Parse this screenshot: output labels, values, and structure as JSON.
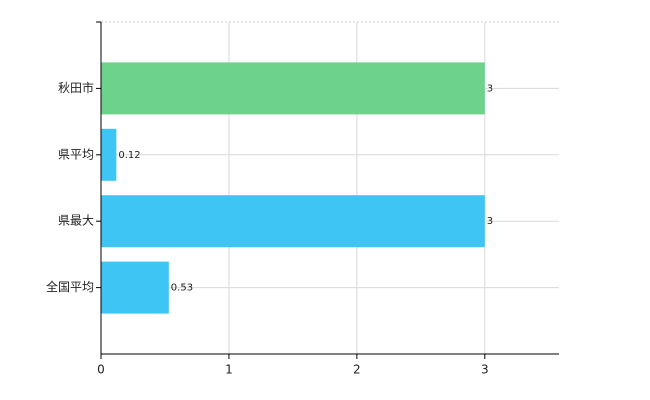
{
  "chart_data": {
    "type": "barh",
    "categories": [
      "秋田市",
      "県平均",
      "県最大",
      "全国平均"
    ],
    "values": [
      3,
      0.12,
      3,
      0.53
    ],
    "colors": [
      "#6dd38c",
      "#3ec5f4",
      "#3ec5f4",
      "#3ec5f4"
    ],
    "xlim": [
      0,
      3.58
    ],
    "xticks": [
      0,
      1,
      2,
      3
    ],
    "grid": true
  }
}
